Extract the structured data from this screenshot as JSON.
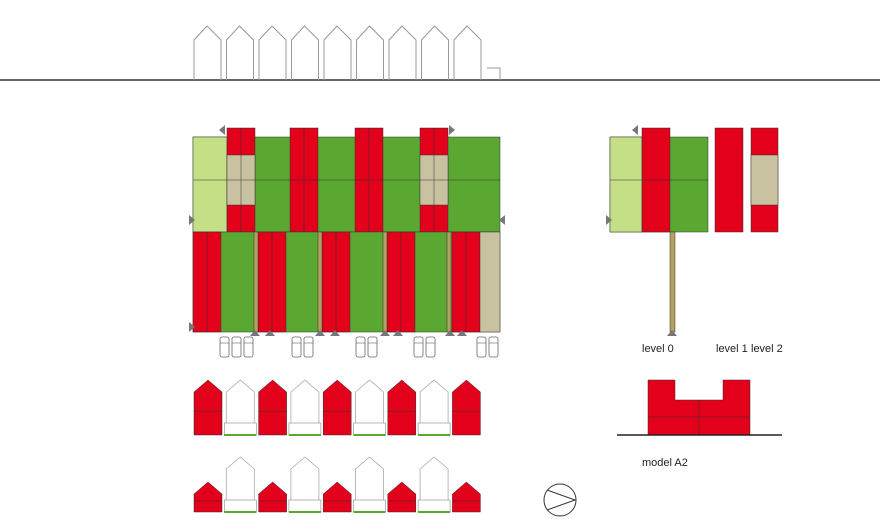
{
  "labels": {
    "level_0": "level 0",
    "level_1": "level 1",
    "level_2": "level 2",
    "model": "model A2"
  }
}
